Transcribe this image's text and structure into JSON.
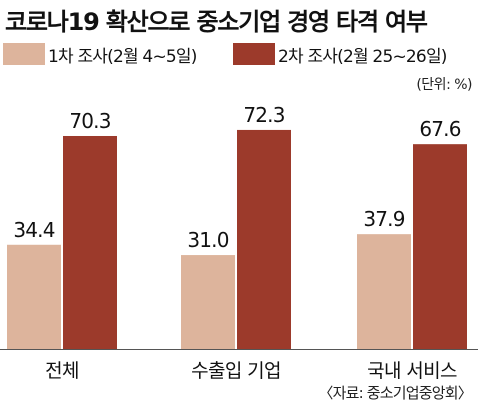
{
  "title": "코로나19 확산으로 중소기업 경영 타격 여부",
  "unit": "(단위: %)",
  "source": "〈자료: 중소기업중앙회〉",
  "colors": {
    "series1": "#ddb49c",
    "series2": "#9c3a2b",
    "axis": "#555555"
  },
  "chart_data": {
    "type": "bar",
    "categories": [
      "전체",
      "수출입 기업",
      "국내 서비스"
    ],
    "series": [
      {
        "name": "1차 조사(2월 4~5일)",
        "values": [
          34.4,
          31.0,
          37.9
        ],
        "labels": [
          "34.4",
          "31.0",
          "37.9"
        ]
      },
      {
        "name": "2차 조사(2월 25~26일)",
        "values": [
          70.3,
          72.3,
          67.6
        ],
        "labels": [
          "70.3",
          "72.3",
          "67.6"
        ]
      }
    ],
    "ylim": [
      0,
      80
    ],
    "grid": false,
    "legend": "top"
  }
}
